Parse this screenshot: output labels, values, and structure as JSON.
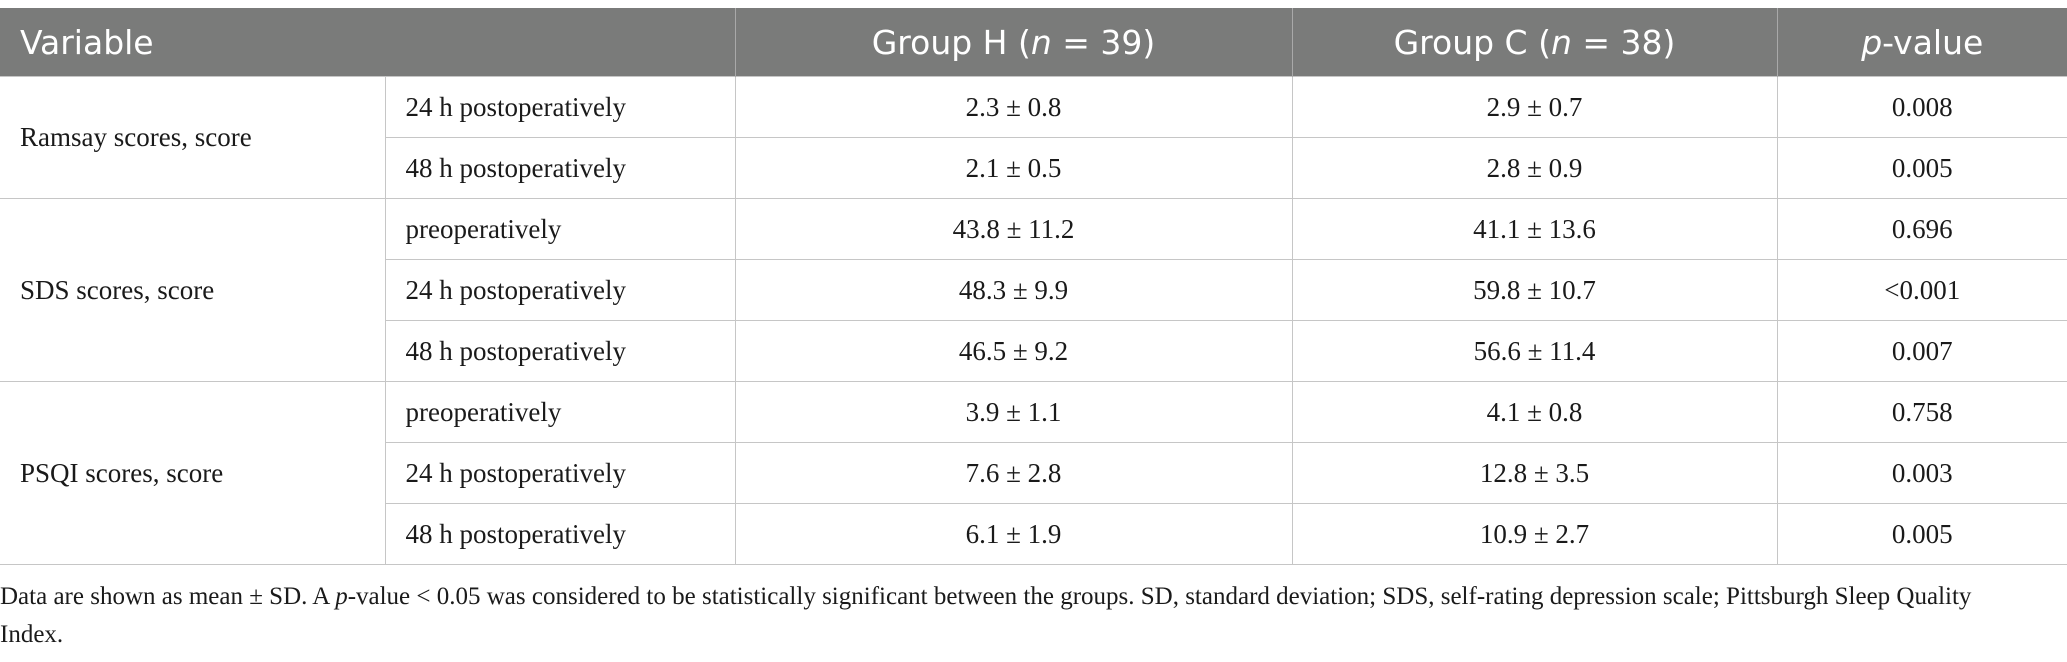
{
  "header": {
    "variable": "Variable",
    "group_h_prefix": "Group H (",
    "group_h_n": "n",
    "group_h_suffix": " = 39)",
    "group_c_prefix": "Group C (",
    "group_c_n": "n",
    "group_c_suffix": " = 38)",
    "p_italic": "p",
    "p_suffix": "-value"
  },
  "groups": [
    {
      "variable": "Ramsay scores, score",
      "rows": [
        {
          "time": "24 h postoperatively",
          "h": "2.3 ± 0.8",
          "c": "2.9 ± 0.7",
          "p": "0.008"
        },
        {
          "time": "48 h postoperatively",
          "h": "2.1 ± 0.5",
          "c": "2.8 ± 0.9",
          "p": "0.005"
        }
      ]
    },
    {
      "variable": "SDS scores, score",
      "rows": [
        {
          "time": "preoperatively",
          "h": "43.8 ± 11.2",
          "c": "41.1 ± 13.6",
          "p": "0.696"
        },
        {
          "time": "24 h postoperatively",
          "h": "48.3 ± 9.9",
          "c": "59.8 ± 10.7",
          "p": "<0.001"
        },
        {
          "time": "48 h postoperatively",
          "h": "46.5 ± 9.2",
          "c": "56.6 ± 11.4",
          "p": "0.007"
        }
      ]
    },
    {
      "variable": "PSQI scores, score",
      "rows": [
        {
          "time": "preoperatively",
          "h": "3.9 ± 1.1",
          "c": "4.1 ± 0.8",
          "p": "0.758"
        },
        {
          "time": "24 h postoperatively",
          "h": "7.6 ± 2.8",
          "c": "12.8 ± 3.5",
          "p": "0.003"
        },
        {
          "time": "48 h postoperatively",
          "h": "6.1 ± 1.9",
          "c": "10.9 ± 2.7",
          "p": "0.005"
        }
      ]
    }
  ],
  "footnote": {
    "part1": "Data are shown as mean ± SD. A ",
    "p_italic": "p",
    "part2": "-value < 0.05 was considered to be statistically significant between the groups. SD, standard deviation; SDS, self-rating depression scale; Pittsburgh Sleep Quality Index."
  }
}
